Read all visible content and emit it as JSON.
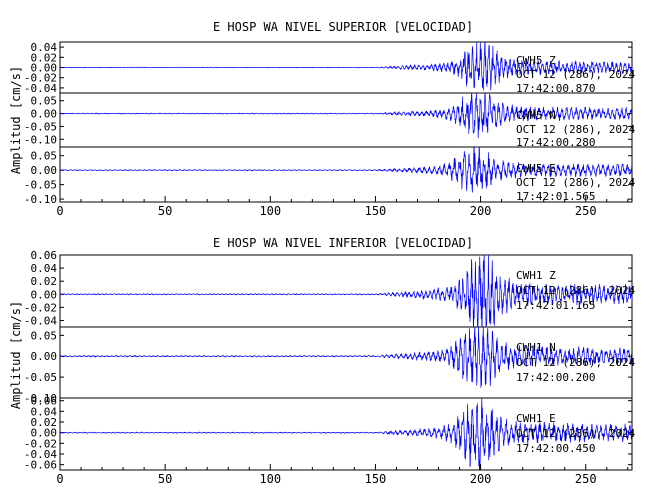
{
  "chart_data": [
    {
      "type": "line",
      "title": "E HOSP WA NIVEL SUPERIOR [VELOCIDAD]",
      "ylabel": "Amplitud [cm/s]",
      "xlim": [
        0,
        272
      ],
      "x_ticks": [
        "0",
        "50",
        "100",
        "150",
        "200",
        "250"
      ],
      "line_color": "#0000ff",
      "series": [
        {
          "name": "CWH5 Z",
          "station": "CWH5",
          "component": "Z",
          "date": "OCT 12 (286), 2024",
          "time": "17:42:00.870",
          "ylim": [
            -0.05,
            0.05
          ],
          "y_ticks": [
            "0.04",
            "0.02",
            "0.00",
            "-0.02",
            "-0.04"
          ],
          "y_tick_values": [
            0.04,
            0.02,
            0.0,
            -0.02,
            -0.04
          ],
          "noise_amplitude": 0.0006,
          "onset_s": 150,
          "peak_s": 199,
          "peak_amplitude": 0.045,
          "decay_s": 22,
          "period_s": 2.0,
          "seed": 11
        },
        {
          "name": "CWH5 N",
          "station": "CWH5",
          "component": "N",
          "date": "OCT 12 (286), 2024",
          "time": "17:42:00.280",
          "ylim": [
            -0.13,
            0.08
          ],
          "y_ticks": [
            "0.05",
            "0.00",
            "-0.05",
            "-0.10"
          ],
          "y_tick_values": [
            0.05,
            0.0,
            -0.05,
            -0.1
          ],
          "noise_amplitude": 0.0015,
          "onset_s": 150,
          "peak_s": 198,
          "peak_amplitude": 0.085,
          "decay_s": 24,
          "period_s": 2.2,
          "seed": 23
        },
        {
          "name": "CWH5 E",
          "station": "CWH5",
          "component": "E",
          "date": "OCT 12 (286), 2024",
          "time": "17:42:01.565",
          "ylim": [
            -0.11,
            0.08
          ],
          "y_ticks": [
            "0.05",
            "0.00",
            "-0.05",
            "-0.10"
          ],
          "y_tick_values": [
            0.05,
            0.0,
            -0.05,
            -0.1
          ],
          "noise_amplitude": 0.0015,
          "onset_s": 150,
          "peak_s": 196,
          "peak_amplitude": 0.075,
          "decay_s": 26,
          "period_s": 2.4,
          "seed": 37
        }
      ]
    },
    {
      "type": "line",
      "title": "E HOSP WA NIVEL INFERIOR [VELOCIDAD]",
      "ylabel": "Amplitud [cm/s]",
      "xlim": [
        0,
        272
      ],
      "x_ticks": [
        "0",
        "50",
        "100",
        "150",
        "200",
        "250"
      ],
      "line_color": "#0000ff",
      "series": [
        {
          "name": "CWH1 Z",
          "station": "CWH1",
          "component": "Z",
          "date": "OCT 12 (286), 2024",
          "time": "17:42:01.165",
          "ylim": [
            -0.05,
            0.06
          ],
          "y_ticks": [
            "0.06",
            "0.04",
            "0.02",
            "0.00",
            "-0.02",
            "-0.04"
          ],
          "y_tick_values": [
            0.06,
            0.04,
            0.02,
            0.0,
            -0.02,
            -0.04
          ],
          "noise_amplitude": 0.0008,
          "onset_s": 150,
          "peak_s": 200,
          "peak_amplitude": 0.055,
          "decay_s": 22,
          "period_s": 2.0,
          "seed": 53
        },
        {
          "name": "CWH1 N",
          "station": "CWH1",
          "component": "N",
          "date": "OCT 12 (286), 2024",
          "time": "17:42:00.200",
          "ylim": [
            -0.1,
            0.07
          ],
          "y_ticks": [
            "0.05",
            "0.00",
            "-0.05",
            "-0.10"
          ],
          "y_tick_values": [
            0.05,
            0.0,
            -0.05,
            -0.1
          ],
          "noise_amplitude": 0.0015,
          "onset_s": 150,
          "peak_s": 198,
          "peak_amplitude": 0.075,
          "decay_s": 24,
          "period_s": 2.2,
          "seed": 71
        },
        {
          "name": "CWH1 E",
          "station": "CWH1",
          "component": "E",
          "date": "OCT 12 (286), 2024",
          "time": "17:42:00.450",
          "ylim": [
            -0.07,
            0.065
          ],
          "y_ticks": [
            "0.06",
            "0.04",
            "0.02",
            "0.00",
            "-0.02",
            "-0.04",
            "-0.06"
          ],
          "y_tick_values": [
            0.06,
            0.04,
            0.02,
            0.0,
            -0.02,
            -0.04,
            -0.06
          ],
          "noise_amplitude": 0.0009,
          "onset_s": 150,
          "peak_s": 198,
          "peak_amplitude": 0.06,
          "decay_s": 26,
          "period_s": 2.3,
          "seed": 89
        }
      ]
    }
  ]
}
